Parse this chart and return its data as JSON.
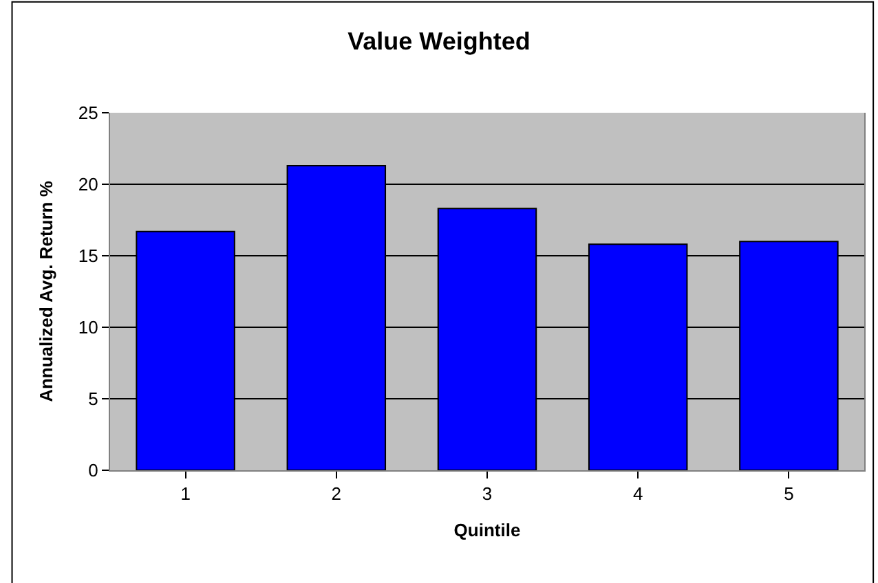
{
  "chart_data": {
    "type": "bar",
    "title": "Value Weighted",
    "xlabel": "Quintile",
    "ylabel": "Annualized Avg. Return %",
    "categories": [
      "1",
      "2",
      "3",
      "4",
      "5"
    ],
    "values": [
      16.7,
      21.3,
      18.3,
      15.8,
      16.0
    ],
    "color": "#0000ff",
    "ylim": [
      0,
      25
    ],
    "yticks": [
      0,
      5,
      10,
      15,
      20,
      25
    ],
    "grid": "y",
    "legend": false
  }
}
